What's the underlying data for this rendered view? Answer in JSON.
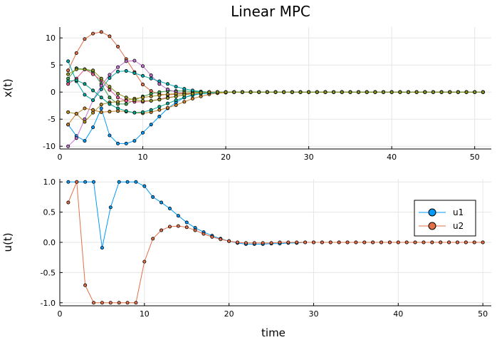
{
  "figure": {
    "title": "Linear MPC"
  },
  "chart_data": [
    {
      "type": "line",
      "title": "Linear MPC",
      "xlabel": "",
      "ylabel": "x(t)",
      "xlim": [
        0,
        52
      ],
      "ylim": [
        -10.5,
        12
      ],
      "xticks": [
        0,
        10,
        20,
        30,
        40,
        50
      ],
      "yticks": [
        -10,
        -5,
        0,
        5,
        10
      ],
      "xtick_labels": [
        "0",
        "10",
        "20",
        "30",
        "40",
        "50"
      ],
      "ytick_labels": [
        "-10",
        "-5",
        "0",
        "5",
        "10"
      ],
      "grid": true,
      "legend": "none",
      "markers": true,
      "x": [
        1,
        2,
        3,
        4,
        5,
        6,
        7,
        8,
        9,
        10,
        11,
        12,
        13,
        14,
        15,
        16,
        17,
        18,
        19,
        20,
        21,
        22,
        23,
        24,
        25,
        26,
        27,
        28,
        29,
        30,
        31,
        32,
        33,
        34,
        35,
        36,
        37,
        38,
        39,
        40,
        41,
        42,
        43,
        44,
        45,
        46,
        47,
        48,
        49,
        50,
        51
      ],
      "series": [
        {
          "color": "#009AFA",
          "values": [
            -6,
            -8.1,
            -9,
            -6.5,
            -3,
            -8,
            -9.5,
            -9.5,
            -9,
            -7.5,
            -6,
            -4.5,
            -3,
            -1.9,
            -1,
            -0.5,
            -0.3,
            -0.2,
            -0.1,
            -0.05,
            0,
            0,
            0,
            0,
            0,
            0,
            0,
            0,
            0,
            0,
            0,
            0,
            0,
            0,
            0,
            0,
            0,
            0,
            0,
            0,
            0,
            0,
            0,
            0,
            0,
            0,
            0,
            0,
            0,
            0,
            0
          ]
        },
        {
          "color": "#E36F47",
          "values": [
            4,
            7.2,
            9.8,
            10.8,
            11.1,
            10.3,
            8.4,
            6.1,
            3.7,
            1.4,
            0.2,
            -0.4,
            -0.5,
            -0.4,
            -0.3,
            -0.2,
            -0.1,
            0,
            0,
            0,
            0,
            0,
            0,
            0,
            0,
            0,
            0,
            0,
            0,
            0,
            0,
            0,
            0,
            0,
            0,
            0,
            0,
            0,
            0,
            0,
            0,
            0,
            0,
            0,
            0,
            0,
            0,
            0,
            0,
            0,
            0
          ]
        },
        {
          "color": "#3EA44E",
          "values": [
            2.5,
            4.4,
            4.2,
            3.7,
            1.5,
            -1,
            -2.2,
            -2.2,
            -1.5,
            -0.8,
            -0.3,
            0,
            0.2,
            0.2,
            0.2,
            0.1,
            0.1,
            0,
            0,
            0,
            0,
            0,
            0,
            0,
            0,
            0,
            0,
            0,
            0,
            0,
            0,
            0,
            0,
            0,
            0,
            0,
            0,
            0,
            0,
            0,
            0,
            0,
            0,
            0,
            0,
            0,
            0,
            0,
            0,
            0,
            0
          ]
        },
        {
          "color": "#C371D2",
          "values": [
            -10,
            -8.5,
            -5,
            -1.5,
            1.2,
            3.2,
            4.6,
            5.7,
            5.8,
            4.8,
            3.1,
            1.5,
            0.5,
            0,
            -0.2,
            -0.2,
            -0.1,
            0,
            0,
            0,
            0,
            0,
            0,
            0,
            0,
            0,
            0,
            0,
            0,
            0,
            0,
            0,
            0,
            0,
            0,
            0,
            0,
            0,
            0,
            0,
            0,
            0,
            0,
            0,
            0,
            0,
            0,
            0,
            0,
            0,
            0
          ]
        },
        {
          "color": "#AC8D18",
          "values": [
            -3.7,
            -4,
            -5.5,
            -3.8,
            -2.3,
            -1.9,
            -1.8,
            -1.5,
            -1.2,
            -1,
            -0.8,
            -0.6,
            -0.4,
            -0.3,
            -0.2,
            -0.1,
            0,
            0,
            0,
            0,
            0,
            0,
            0,
            0,
            0,
            0,
            0,
            0,
            0,
            0,
            0,
            0,
            0,
            0,
            0,
            0,
            0,
            0,
            0,
            0,
            0,
            0,
            0,
            0,
            0,
            0,
            0,
            0,
            0,
            0,
            0
          ]
        },
        {
          "color": "#00A9AD",
          "values": [
            5.7,
            2,
            -0.5,
            -1.5,
            0.5,
            2.6,
            3.8,
            3.9,
            3.5,
            3,
            2.5,
            2,
            1.5,
            1,
            0.6,
            0.3,
            0.1,
            0,
            0,
            0,
            0,
            0,
            0,
            0,
            0,
            0,
            0,
            0,
            0,
            0,
            0,
            0,
            0,
            0,
            0,
            0,
            0,
            0,
            0,
            0,
            0,
            0,
            0,
            0,
            0,
            0,
            0,
            0,
            0,
            0,
            0
          ]
        },
        {
          "color": "#ED5E93",
          "values": [
            1.5,
            2.5,
            4.2,
            3.3,
            2.2,
            0.4,
            -1,
            -1.6,
            -1.8,
            -1.8,
            -1.6,
            -1.3,
            -1,
            -0.8,
            -0.5,
            -0.3,
            -0.1,
            0,
            0,
            0,
            0,
            0,
            0,
            0,
            0,
            0,
            0,
            0,
            0,
            0,
            0,
            0,
            0,
            0,
            0,
            0,
            0,
            0,
            0,
            0,
            0,
            0,
            0,
            0,
            0,
            0,
            0,
            0,
            0,
            0,
            0
          ]
        },
        {
          "color": "#C68225",
          "values": [
            -6,
            -4,
            -3,
            -3.3,
            -3.7,
            -3.6,
            -3.5,
            -3.6,
            -3.8,
            -3.9,
            -3.7,
            -3.3,
            -2.9,
            -2.4,
            -1.8,
            -1.2,
            -0.8,
            -0.4,
            -0.2,
            -0.1,
            0,
            0,
            0,
            0,
            0,
            0,
            0,
            0,
            0,
            0,
            0,
            0,
            0,
            0,
            0,
            0,
            0,
            0,
            0,
            0,
            0,
            0,
            0,
            0,
            0,
            0,
            0,
            0,
            0,
            0,
            0
          ]
        },
        {
          "color": "#00A98D",
          "values": [
            2,
            2.2,
            1.5,
            0.3,
            -1,
            -2.2,
            -3,
            -3.5,
            -3.8,
            -3.7,
            -3.3,
            -2.7,
            -2.1,
            -1.5,
            -1,
            -0.6,
            -0.3,
            -0.1,
            0,
            0,
            0,
            0,
            0,
            0,
            0,
            0,
            0,
            0,
            0,
            0,
            0,
            0,
            0,
            0,
            0,
            0,
            0,
            0,
            0,
            0,
            0,
            0,
            0,
            0,
            0,
            0,
            0,
            0,
            0,
            0,
            0
          ]
        },
        {
          "color": "#8E971E",
          "values": [
            3.3,
            4.2,
            4.2,
            4,
            2.5,
            1,
            -0.3,
            -1,
            -1.5,
            -1.6,
            -1.6,
            -1.4,
            -1.1,
            -0.8,
            -0.5,
            -0.3,
            -0.1,
            0,
            0,
            0,
            0,
            0,
            0,
            0,
            0,
            0,
            0,
            0,
            0,
            0,
            0,
            0,
            0,
            0,
            0,
            0,
            0,
            0,
            0,
            0,
            0,
            0,
            0,
            0,
            0,
            0,
            0,
            0,
            0,
            0,
            0
          ]
        }
      ]
    },
    {
      "type": "line",
      "title": "",
      "xlabel": "time",
      "ylabel": "u(t)",
      "xlim": [
        0,
        51
      ],
      "ylim": [
        -1.05,
        1.05
      ],
      "xticks": [
        0,
        10,
        20,
        30,
        40,
        50
      ],
      "yticks": [
        -1.0,
        -0.5,
        0.0,
        0.5,
        1.0
      ],
      "xtick_labels": [
        "0",
        "10",
        "20",
        "30",
        "40",
        "50"
      ],
      "ytick_labels": [
        "-1.0",
        "-0.5",
        "0.0",
        "0.5",
        "1.0"
      ],
      "grid": true,
      "legend": "right",
      "markers": true,
      "x": [
        1,
        2,
        3,
        4,
        5,
        6,
        7,
        8,
        9,
        10,
        11,
        12,
        13,
        14,
        15,
        16,
        17,
        18,
        19,
        20,
        21,
        22,
        23,
        24,
        25,
        26,
        27,
        28,
        29,
        30,
        31,
        32,
        33,
        34,
        35,
        36,
        37,
        38,
        39,
        40,
        41,
        42,
        43,
        44,
        45,
        46,
        47,
        48,
        49,
        50
      ],
      "series": [
        {
          "name": "u1",
          "color": "#009AFA",
          "values": [
            1,
            1,
            1,
            1,
            -0.09,
            0.58,
            1,
            1,
            1,
            0.93,
            0.75,
            0.66,
            0.56,
            0.44,
            0.33,
            0.24,
            0.17,
            0.11,
            0.06,
            0.02,
            -0.01,
            -0.03,
            -0.03,
            -0.03,
            -0.02,
            -0.02,
            -0.01,
            -0.01,
            0,
            0,
            0,
            0,
            0,
            0,
            0,
            0,
            0,
            0,
            0,
            0,
            0,
            0,
            0,
            0,
            0,
            0,
            0,
            0,
            0,
            0
          ]
        },
        {
          "name": "u2",
          "color": "#E36F47",
          "values": [
            0.66,
            1,
            -0.71,
            -1,
            -1,
            -1,
            -1,
            -1,
            -1,
            -0.32,
            0.06,
            0.2,
            0.26,
            0.27,
            0.25,
            0.2,
            0.14,
            0.09,
            0.05,
            0.02,
            0,
            -0.01,
            -0.01,
            -0.01,
            -0.01,
            0,
            0,
            0,
            0,
            0,
            0,
            0,
            0,
            0,
            0,
            0,
            0,
            0,
            0,
            0,
            0,
            0,
            0,
            0,
            0,
            0,
            0,
            0,
            0,
            0
          ]
        }
      ]
    }
  ]
}
